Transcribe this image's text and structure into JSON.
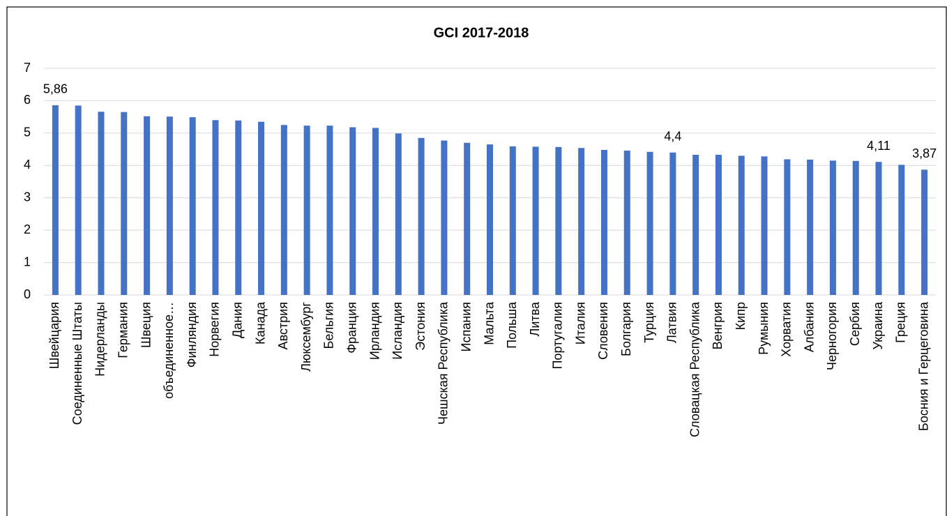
{
  "chart_data": {
    "type": "bar",
    "title": "GCI 2017-2018",
    "categories": [
      "Швейцария",
      "Соединенные Штаты",
      "Нидерланды",
      "Германия",
      "Швеция",
      "объединенное…",
      "Финляндия",
      "Норвегия",
      "Дания",
      "Канада",
      "Австрия",
      "Люксембург",
      "Бельгия",
      "Франция",
      "Ирландия",
      "Исландия",
      "Эстония",
      "Чешская Республика",
      "Испания",
      "Мальта",
      "Польша",
      "Литва",
      "Португалия",
      "Италия",
      "Словения",
      "Болгария",
      "Турция",
      "Латвия",
      "Словацкая Республика",
      "Венгрия",
      "Кипр",
      "Румыния",
      "Хорватия",
      "Албания",
      "Черногория",
      "Сербия",
      "Украина",
      "Греция",
      "Босния и Герцеговина"
    ],
    "values": [
      5.86,
      5.85,
      5.66,
      5.65,
      5.52,
      5.51,
      5.49,
      5.4,
      5.39,
      5.35,
      5.25,
      5.23,
      5.23,
      5.18,
      5.16,
      4.99,
      4.85,
      4.77,
      4.7,
      4.65,
      4.59,
      4.58,
      4.57,
      4.54,
      4.48,
      4.46,
      4.42,
      4.4,
      4.33,
      4.33,
      4.3,
      4.28,
      4.19,
      4.18,
      4.15,
      4.14,
      4.11,
      4.02,
      3.87
    ],
    "value_labels": [
      "5,86",
      null,
      null,
      null,
      null,
      null,
      null,
      null,
      null,
      null,
      null,
      null,
      null,
      null,
      null,
      null,
      null,
      null,
      null,
      null,
      null,
      null,
      null,
      null,
      null,
      null,
      null,
      "4,4",
      null,
      null,
      null,
      null,
      null,
      null,
      null,
      null,
      "4,11",
      null,
      "3,87"
    ],
    "color": "#4472c4",
    "ylim": [
      0,
      7
    ],
    "yticks": [
      0,
      1,
      2,
      3,
      4,
      5,
      6,
      7
    ],
    "grid": true
  }
}
